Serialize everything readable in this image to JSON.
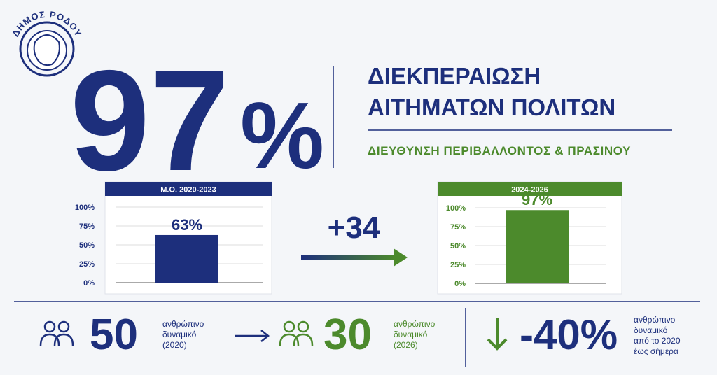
{
  "logo_text": "ΔΗΜΟΣ ΡΟΔΟΥ",
  "headline": "97",
  "headline_unit": "%",
  "title_lines": [
    "ΔΙΕΚΠΕΡΑΙΩΣΗ",
    "ΑΙΤΗΜΑΤΩΝ ΠΟΛΙΤΩΝ"
  ],
  "subtitle": "ΔΙΕΥΘΥΝΣΗ ΠΕΡΙΒΑΛΛΟΝΤΟΣ & ΠΡΑΣΙΝΟΥ",
  "change": "+34",
  "chart_data": [
    {
      "type": "bar",
      "title": "Μ.Ο. 2020-2023",
      "categories": [
        null
      ],
      "values": [
        63
      ],
      "value_labels": [
        "63%"
      ],
      "color": "#1d2f7c",
      "ylim": [
        0,
        100
      ],
      "grid": true,
      "yticks": [
        {
          "value": 0,
          "label": "0%"
        },
        {
          "value": 25,
          "label": "25%"
        },
        {
          "value": 50,
          "label": "50%"
        },
        {
          "value": 75,
          "label": "75%"
        },
        {
          "value": 100,
          "label": "100%"
        }
      ]
    },
    {
      "type": "bar",
      "title": "2024-2026",
      "categories": [
        null
      ],
      "values": [
        97
      ],
      "value_labels": [
        "97%"
      ],
      "color": "#4c8a2c",
      "ylim": [
        0,
        100
      ],
      "grid": true,
      "yticks": [
        {
          "value": 0,
          "label": "0%"
        },
        {
          "value": 25,
          "label": "25%"
        },
        {
          "value": 50,
          "label": "50%"
        },
        {
          "value": 75,
          "label": "75%"
        },
        {
          "value": 100,
          "label": "100%"
        }
      ]
    }
  ],
  "stats": [
    {
      "number": "50",
      "lines": [
        "ανθρώπινο",
        "δυναμικό",
        "(2020)"
      ]
    },
    {
      "number": "30",
      "lines": [
        "ανθρώπινο",
        "δυναμικό",
        "(2026)"
      ]
    },
    {
      "number": "-40%",
      "lines": [
        "ανθρώπινο",
        "δυναμικό",
        "από το 2020",
        "έως σήμερα"
      ]
    }
  ]
}
